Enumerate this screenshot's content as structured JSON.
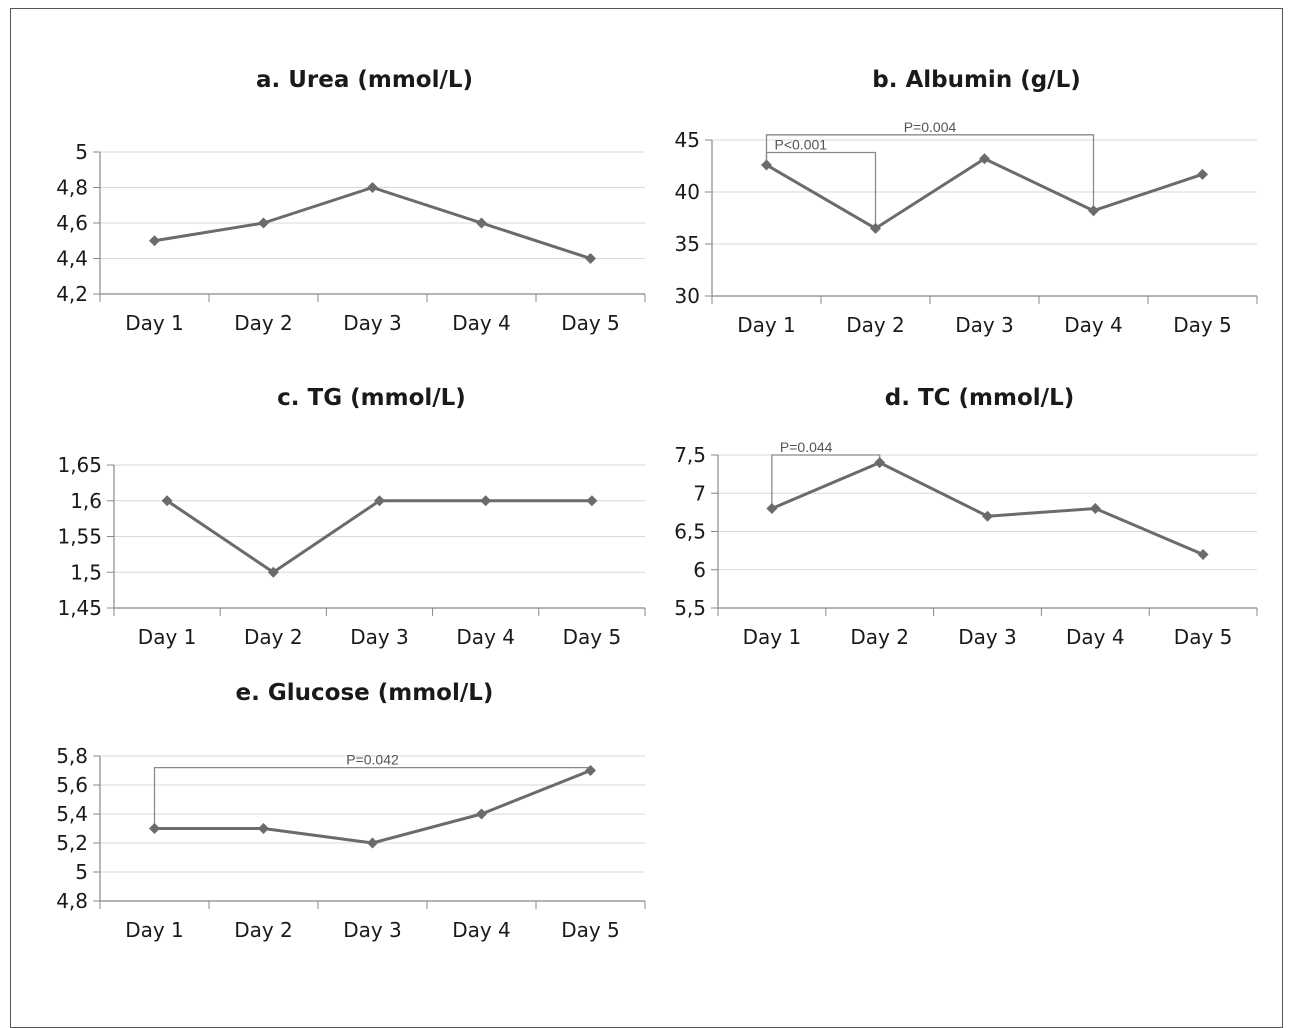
{
  "chart_data": [
    {
      "type": "line",
      "title": "a. Urea (mmol/L)",
      "categories": [
        "Day 1",
        "Day 2",
        "Day 3",
        "Day 4",
        "Day 5"
      ],
      "values": [
        4.5,
        4.6,
        4.8,
        4.6,
        4.4
      ],
      "ylim": [
        4.2,
        5
      ],
      "yticks": [
        "4,2",
        "4,4",
        "4,6",
        "4,8",
        "5"
      ],
      "grid": true,
      "line_color": "#6b6b6b",
      "annotations": []
    },
    {
      "type": "line",
      "title": "b. Albumin (g/L)",
      "categories": [
        "Day 1",
        "Day 2",
        "Day 3",
        "Day 4",
        "Day 5"
      ],
      "values": [
        42.6,
        36.5,
        43.2,
        38.2,
        41.7
      ],
      "ylim": [
        30,
        45
      ],
      "yticks": [
        "30",
        "35",
        "40",
        "45"
      ],
      "grid": true,
      "line_color": "#6b6b6b",
      "annotations": [
        {
          "label": "P<0.001",
          "from": 0,
          "to": 1,
          "y": 43.8
        },
        {
          "label": "P=0.004",
          "from": 0,
          "to": 3,
          "y": 45.5
        }
      ]
    },
    {
      "type": "line",
      "title": "c. TG (mmol/L)",
      "categories": [
        "Day 1",
        "Day 2",
        "Day 3",
        "Day 4",
        "Day 5"
      ],
      "values": [
        1.6,
        1.5,
        1.6,
        1.6,
        1.6
      ],
      "ylim": [
        1.45,
        1.65
      ],
      "yticks": [
        "1,45",
        "1,5",
        "1,55",
        "1,6",
        "1,65"
      ],
      "grid": true,
      "line_color": "#6b6b6b",
      "annotations": []
    },
    {
      "type": "line",
      "title": "d. TC (mmol/L)",
      "categories": [
        "Day 1",
        "Day 2",
        "Day 3",
        "Day 4",
        "Day 5"
      ],
      "values": [
        6.8,
        7.4,
        6.7,
        6.8,
        6.2
      ],
      "ylim": [
        5.5,
        7.5
      ],
      "yticks": [
        "5,5",
        "6",
        "6,5",
        "7",
        "7,5"
      ],
      "grid": true,
      "line_color": "#6b6b6b",
      "annotations": [
        {
          "label": "P=0.044",
          "from": 0,
          "to": 1,
          "y": 7.5
        }
      ]
    },
    {
      "type": "line",
      "title": "e. Glucose (mmol/L)",
      "categories": [
        "Day 1",
        "Day 2",
        "Day 3",
        "Day 4",
        "Day 5"
      ],
      "values": [
        5.3,
        5.3,
        5.2,
        5.4,
        5.7
      ],
      "ylim": [
        4.8,
        5.8
      ],
      "yticks": [
        "4,8",
        "5",
        "5,2",
        "5,4",
        "5,6",
        "5,8"
      ],
      "grid": true,
      "line_color": "#6b6b6b",
      "annotations": [
        {
          "label": "P=0.042",
          "from": 0,
          "to": 4,
          "y": 5.72
        }
      ]
    }
  ]
}
